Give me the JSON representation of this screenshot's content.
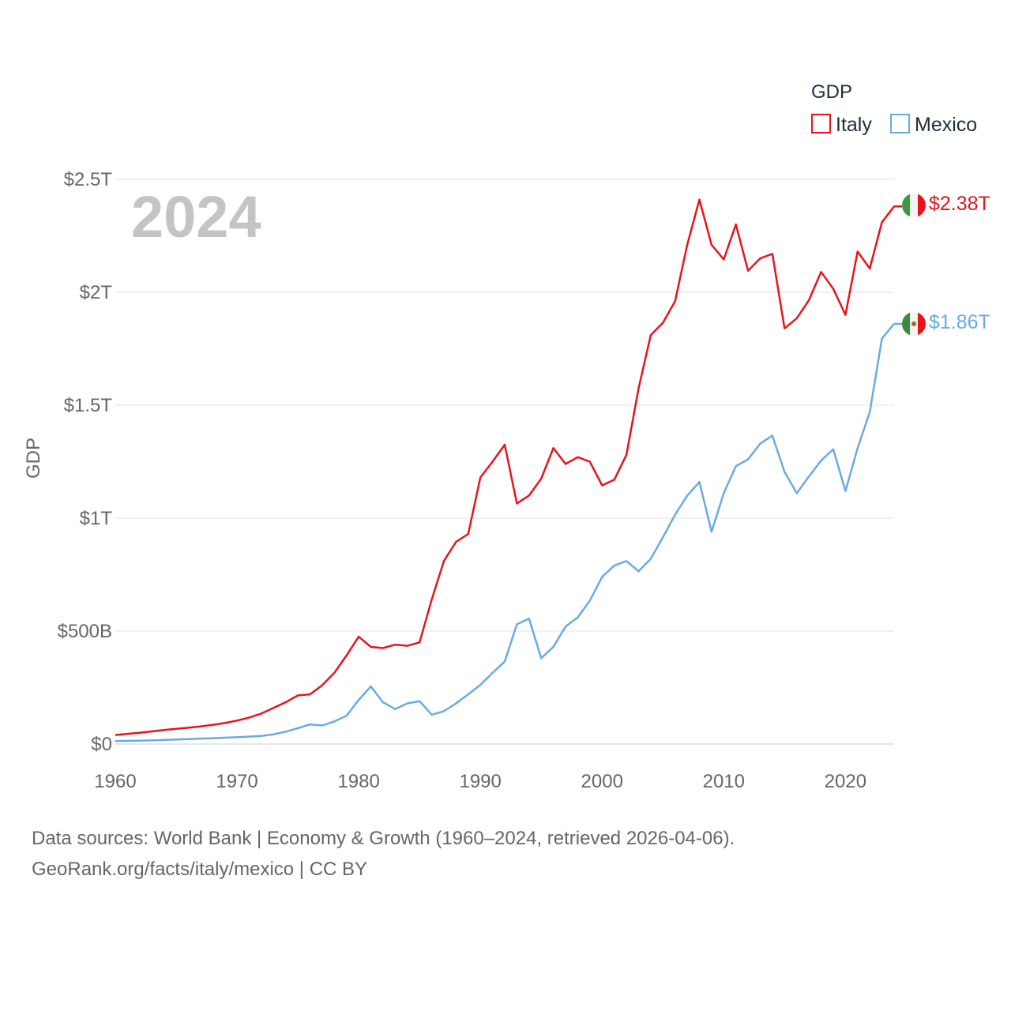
{
  "chart_data": {
    "type": "line",
    "year_label": "2024",
    "ylabel": "GDP",
    "ylim": [
      0,
      2500000000000
    ],
    "y_ticks": [
      {
        "value": 0,
        "label": "$0"
      },
      {
        "value": 500000000000,
        "label": "$500B"
      },
      {
        "value": 1000000000000,
        "label": "$1T"
      },
      {
        "value": 1500000000000,
        "label": "$1.5T"
      },
      {
        "value": 2000000000000,
        "label": "$2T"
      },
      {
        "value": 2500000000000,
        "label": "$2.5T"
      }
    ],
    "xlim": [
      1960,
      2024
    ],
    "x_ticks": [
      {
        "value": 1960,
        "label": "1960"
      },
      {
        "value": 1970,
        "label": "1970"
      },
      {
        "value": 1980,
        "label": "1980"
      },
      {
        "value": 1990,
        "label": "1990"
      },
      {
        "value": 2000,
        "label": "2000"
      },
      {
        "value": 2010,
        "label": "2010"
      },
      {
        "value": 2020,
        "label": "2020"
      }
    ],
    "legend_title": "GDP",
    "x_start": 1960,
    "series": [
      {
        "name": "Italy",
        "color": "#e8141c",
        "end_label": "$2.38T",
        "flag": "italy-flag",
        "values_billion": [
          40,
          45,
          50,
          56,
          62,
          67,
          72,
          78,
          85,
          93,
          104,
          117,
          135,
          160,
          185,
          215,
          220,
          260,
          315,
          392,
          475,
          430,
          425,
          440,
          435,
          450,
          640,
          810,
          895,
          930,
          1180,
          1250,
          1325,
          1065,
          1100,
          1175,
          1310,
          1240,
          1270,
          1250,
          1145,
          1170,
          1280,
          1575,
          1810,
          1865,
          1960,
          2210,
          2410,
          2210,
          2145,
          2300,
          2095,
          2150,
          2170,
          1840,
          1885,
          1965,
          2090,
          2015,
          1900,
          2180,
          2105,
          2310,
          2380
        ]
      },
      {
        "name": "Mexico",
        "color": "#6aaae4",
        "end_label": "$1.86T",
        "flag": "mexico-flag",
        "values_billion": [
          13,
          14,
          15,
          16,
          18,
          20,
          22,
          24,
          26,
          28,
          30,
          33,
          36,
          43,
          55,
          70,
          87,
          82,
          100,
          125,
          195,
          255,
          185,
          155,
          180,
          190,
          130,
          145,
          180,
          220,
          262,
          315,
          365,
          530,
          555,
          380,
          430,
          520,
          560,
          635,
          740,
          790,
          810,
          765,
          820,
          915,
          1015,
          1100,
          1160,
          940,
          1110,
          1230,
          1260,
          1330,
          1365,
          1205,
          1110,
          1185,
          1255,
          1305,
          1120,
          1310,
          1470,
          1795,
          1860
        ]
      }
    ]
  },
  "footer": {
    "line1": "Data sources: World Bank | Economy & Growth (1960–2024, retrieved 2026-04-06).",
    "line2": "GeoRank.org/facts/italy/mexico | CC BY"
  }
}
